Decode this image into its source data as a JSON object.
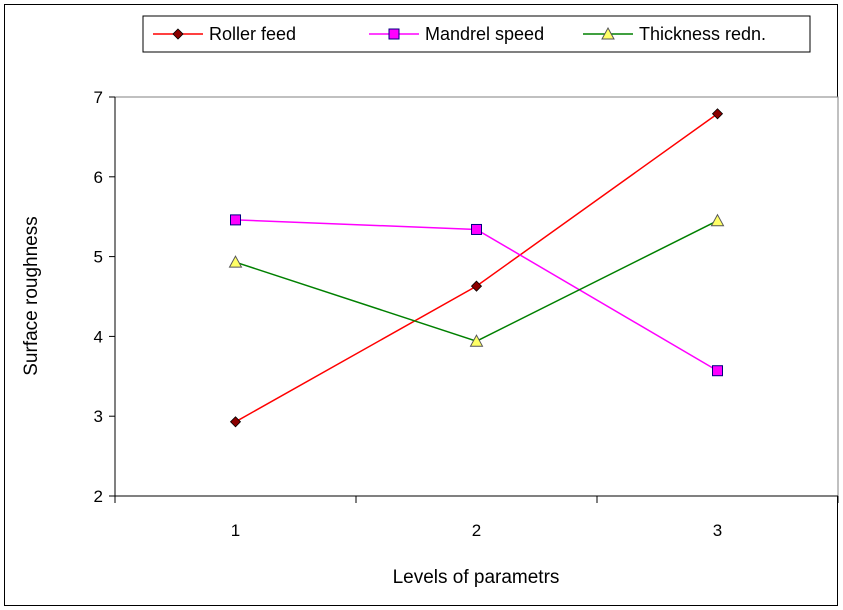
{
  "chart_data": {
    "type": "line",
    "title": "",
    "xlabel": "Levels of parametrs",
    "ylabel": "Surface roughness",
    "categories": [
      "1",
      "2",
      "3"
    ],
    "ylim": [
      2,
      7
    ],
    "yticks": [
      "2",
      "3",
      "4",
      "5",
      "6",
      "7"
    ],
    "grid": false,
    "legend": "top",
    "series": [
      {
        "name": "Roller feed",
        "values": [
          2.93,
          4.63,
          6.79
        ],
        "color": "#ff0000",
        "marker": "diamond",
        "marker_fill": "#8b0000"
      },
      {
        "name": "Mandrel speed",
        "values": [
          5.46,
          5.34,
          3.57
        ],
        "color": "#ff00ff",
        "marker": "square",
        "marker_fill": "#ff00ff"
      },
      {
        "name": "Thickness redn.",
        "values": [
          4.93,
          3.94,
          5.45
        ],
        "color": "#008000",
        "marker": "triangle",
        "marker_fill": "#ffff66"
      }
    ]
  }
}
